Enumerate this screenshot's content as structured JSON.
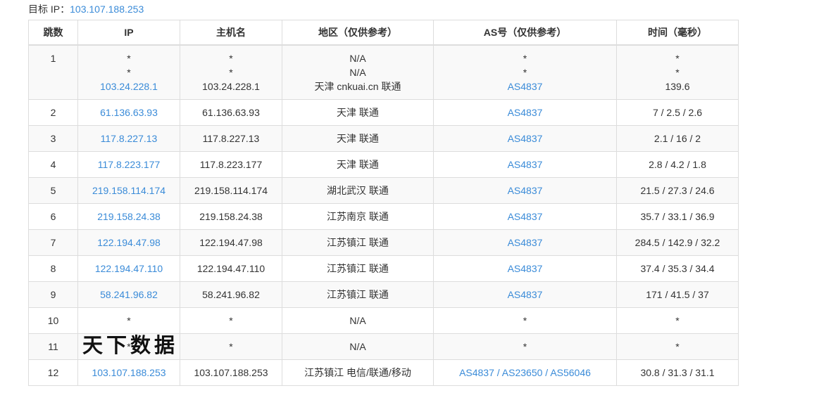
{
  "colors": {
    "link_blue": "#3a8bd8",
    "text": "#333333",
    "border": "#dddddd",
    "stripe_background": "#f9f9f9"
  },
  "header": {
    "label": "目标 IP：",
    "ip": "103.107.188.253"
  },
  "watermark": {
    "text": "天下数据"
  },
  "table": {
    "columns": [
      "跳数",
      "IP",
      "主机名",
      "地区（仅供参考）",
      "AS号（仅供参考）",
      "时间（毫秒）"
    ],
    "rows": [
      {
        "hop": "1",
        "ip": [
          [
            {
              "t": "*"
            }
          ],
          [
            {
              "t": "*"
            }
          ],
          [
            {
              "t": "103.24.228.1",
              "link": true
            }
          ]
        ],
        "host": [
          [
            {
              "t": "*"
            }
          ],
          [
            {
              "t": "*"
            }
          ],
          [
            {
              "t": "103.24.228.1"
            }
          ]
        ],
        "region": [
          [
            {
              "t": "N/A"
            }
          ],
          [
            {
              "t": "N/A"
            }
          ],
          [
            {
              "t": "天津 cnkuai.cn 联通"
            }
          ]
        ],
        "asn": [
          [
            {
              "t": "*"
            }
          ],
          [
            {
              "t": "*"
            }
          ],
          [
            {
              "t": "AS4837",
              "link": true
            }
          ]
        ],
        "time": [
          [
            {
              "t": "*"
            }
          ],
          [
            {
              "t": "*"
            }
          ],
          [
            {
              "t": "139.6"
            }
          ]
        ]
      },
      {
        "hop": "2",
        "ip": [
          [
            {
              "t": "61.136.63.93",
              "link": true
            }
          ]
        ],
        "host": [
          [
            {
              "t": "61.136.63.93"
            }
          ]
        ],
        "region": [
          [
            {
              "t": "天津 联通"
            }
          ]
        ],
        "asn": [
          [
            {
              "t": "AS4837",
              "link": true
            }
          ]
        ],
        "time": [
          [
            {
              "t": "7 / 2.5 / 2.6"
            }
          ]
        ]
      },
      {
        "hop": "3",
        "ip": [
          [
            {
              "t": "117.8.227.13",
              "link": true
            }
          ]
        ],
        "host": [
          [
            {
              "t": "117.8.227.13"
            }
          ]
        ],
        "region": [
          [
            {
              "t": "天津 联通"
            }
          ]
        ],
        "asn": [
          [
            {
              "t": "AS4837",
              "link": true
            }
          ]
        ],
        "time": [
          [
            {
              "t": "2.1 / 16 / 2"
            }
          ]
        ]
      },
      {
        "hop": "4",
        "ip": [
          [
            {
              "t": "117.8.223.177",
              "link": true
            }
          ]
        ],
        "host": [
          [
            {
              "t": "117.8.223.177"
            }
          ]
        ],
        "region": [
          [
            {
              "t": "天津 联通"
            }
          ]
        ],
        "asn": [
          [
            {
              "t": "AS4837",
              "link": true
            }
          ]
        ],
        "time": [
          [
            {
              "t": "2.8 / 4.2 / 1.8"
            }
          ]
        ]
      },
      {
        "hop": "5",
        "ip": [
          [
            {
              "t": "219.158.114.174",
              "link": true
            }
          ]
        ],
        "host": [
          [
            {
              "t": "219.158.114.174"
            }
          ]
        ],
        "region": [
          [
            {
              "t": "湖北武汉 联通"
            }
          ]
        ],
        "asn": [
          [
            {
              "t": "AS4837",
              "link": true
            }
          ]
        ],
        "time": [
          [
            {
              "t": "21.5 / 27.3 / 24.6"
            }
          ]
        ]
      },
      {
        "hop": "6",
        "ip": [
          [
            {
              "t": "219.158.24.38",
              "link": true
            }
          ]
        ],
        "host": [
          [
            {
              "t": "219.158.24.38"
            }
          ]
        ],
        "region": [
          [
            {
              "t": "江苏南京 联通"
            }
          ]
        ],
        "asn": [
          [
            {
              "t": "AS4837",
              "link": true
            }
          ]
        ],
        "time": [
          [
            {
              "t": "35.7 / 33.1 / 36.9"
            }
          ]
        ]
      },
      {
        "hop": "7",
        "ip": [
          [
            {
              "t": "122.194.47.98",
              "link": true
            }
          ]
        ],
        "host": [
          [
            {
              "t": "122.194.47.98"
            }
          ]
        ],
        "region": [
          [
            {
              "t": "江苏镇江 联通"
            }
          ]
        ],
        "asn": [
          [
            {
              "t": "AS4837",
              "link": true
            }
          ]
        ],
        "time": [
          [
            {
              "t": "284.5 / 142.9 / 32.2"
            }
          ]
        ]
      },
      {
        "hop": "8",
        "ip": [
          [
            {
              "t": "122.194.47.110",
              "link": true
            }
          ]
        ],
        "host": [
          [
            {
              "t": "122.194.47.110"
            }
          ]
        ],
        "region": [
          [
            {
              "t": "江苏镇江 联通"
            }
          ]
        ],
        "asn": [
          [
            {
              "t": "AS4837",
              "link": true
            }
          ]
        ],
        "time": [
          [
            {
              "t": "37.4 / 35.3 / 34.4"
            }
          ]
        ]
      },
      {
        "hop": "9",
        "ip": [
          [
            {
              "t": "58.241.96.82",
              "link": true
            }
          ]
        ],
        "host": [
          [
            {
              "t": "58.241.96.82"
            }
          ]
        ],
        "region": [
          [
            {
              "t": "江苏镇江 联通"
            }
          ]
        ],
        "asn": [
          [
            {
              "t": "AS4837",
              "link": true
            }
          ]
        ],
        "time": [
          [
            {
              "t": "171 / 41.5 / 37"
            }
          ]
        ]
      },
      {
        "hop": "10",
        "ip": [
          [
            {
              "t": "*"
            }
          ]
        ],
        "host": [
          [
            {
              "t": "*"
            }
          ]
        ],
        "region": [
          [
            {
              "t": "N/A"
            }
          ]
        ],
        "asn": [
          [
            {
              "t": "*"
            }
          ]
        ],
        "time": [
          [
            {
              "t": "*"
            }
          ]
        ]
      },
      {
        "hop": "11",
        "ip": [
          [
            {
              "t": "*"
            }
          ]
        ],
        "host": [
          [
            {
              "t": "*"
            }
          ]
        ],
        "region": [
          [
            {
              "t": "N/A"
            }
          ]
        ],
        "asn": [
          [
            {
              "t": "*"
            }
          ]
        ],
        "time": [
          [
            {
              "t": "*"
            }
          ]
        ]
      },
      {
        "hop": "12",
        "ip": [
          [
            {
              "t": "103.107.188.253",
              "link": true
            }
          ]
        ],
        "host": [
          [
            {
              "t": "103.107.188.253"
            }
          ]
        ],
        "region": [
          [
            {
              "t": "江苏镇江 电信/联通/移动"
            }
          ]
        ],
        "asn": [
          [
            {
              "t": "AS4837",
              "link": true
            },
            {
              "t": " / ",
              "sep": true
            },
            {
              "t": "AS23650",
              "link": true
            },
            {
              "t": " / ",
              "sep": true
            },
            {
              "t": "AS56046",
              "link": true
            }
          ]
        ],
        "time": [
          [
            {
              "t": "30.8 / 31.3 / 31.1"
            }
          ]
        ]
      }
    ]
  }
}
